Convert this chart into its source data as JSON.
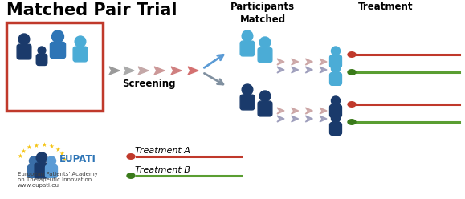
{
  "title": "Matched Pair Trial",
  "title_fontsize": 15,
  "title_fontweight": "bold",
  "background_color": "#ffffff",
  "people_color_light": "#4bacd6",
  "people_color_dark": "#1a3a6b",
  "people_color_mid": "#2e75b6",
  "red_box_color": "#c0392b",
  "arrow_gray_colors": [
    "#9e9e9e",
    "#b0b0b0",
    "#c4a4a4",
    "#cc9999",
    "#d08888"
  ],
  "arrow_color_blue": "#5b9bd5",
  "arrow_color_pink": "#c9a0a0",
  "arrow_color_lavender": "#a0a0c0",
  "line_red": "#c0392b",
  "line_green": "#5a9e32",
  "pill_red": "#c0392b",
  "pill_green": "#3a7a1a",
  "screening_label": "Screening",
  "participants_label": "Participants\nMatched",
  "treatment_label": "Treatment",
  "treatment_a_label": "Treatment A",
  "treatment_b_label": "Treatment B",
  "fig_w": 5.79,
  "fig_h": 2.48,
  "dpi": 100
}
